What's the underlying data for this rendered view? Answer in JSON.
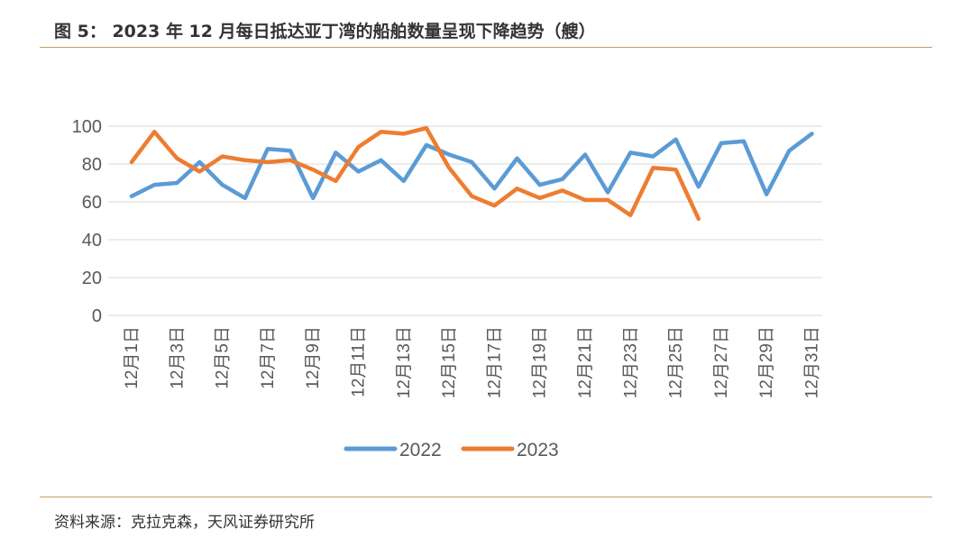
{
  "header": {
    "title": "图 5： 2023 年 12 月每日抵达亚丁湾的船舶数量呈现下降趋势（艘）"
  },
  "footer": {
    "source": "资料来源：克拉克森，天风证券研究所"
  },
  "colors": {
    "series_2022": "#5b9bd5",
    "series_2023": "#ed7d31",
    "grid": "#d9d9d9",
    "rule": "#c89a6a"
  },
  "chart_data": {
    "type": "line",
    "title": "",
    "xlabel": "",
    "ylabel": "",
    "ylim": [
      0,
      100
    ],
    "yticks": [
      0,
      20,
      40,
      60,
      80,
      100
    ],
    "grid": true,
    "legend_position": "bottom",
    "categories": [
      "12月1日",
      "12月2日",
      "12月3日",
      "12月4日",
      "12月5日",
      "12月6日",
      "12月7日",
      "12月8日",
      "12月9日",
      "12月10日",
      "12月11日",
      "12月12日",
      "12月13日",
      "12月14日",
      "12月15日",
      "12月16日",
      "12月17日",
      "12月18日",
      "12月19日",
      "12月20日",
      "12月21日",
      "12月22日",
      "12月23日",
      "12月24日",
      "12月25日",
      "12月26日",
      "12月27日",
      "12月28日",
      "12月29日",
      "12月30日",
      "12月31日"
    ],
    "tick_labels": [
      "12月1日",
      "12月3日",
      "12月5日",
      "12月7日",
      "12月9日",
      "12月11日",
      "12月13日",
      "12月15日",
      "12月17日",
      "12月19日",
      "12月21日",
      "12月23日",
      "12月25日",
      "12月27日",
      "12月29日",
      "12月31日"
    ],
    "series": [
      {
        "name": "2022",
        "values": [
          63,
          69,
          70,
          81,
          69,
          62,
          88,
          87,
          62,
          86,
          76,
          82,
          71,
          90,
          85,
          81,
          67,
          83,
          69,
          72,
          85,
          65,
          86,
          84,
          93,
          68,
          91,
          92,
          64,
          87,
          96
        ]
      },
      {
        "name": "2023",
        "values": [
          81,
          97,
          83,
          76,
          84,
          82,
          81,
          82,
          77,
          71,
          89,
          97,
          96,
          99,
          78,
          63,
          58,
          67,
          62,
          66,
          61,
          61,
          53,
          78,
          77,
          51,
          null,
          null,
          null,
          null,
          null
        ]
      }
    ]
  }
}
